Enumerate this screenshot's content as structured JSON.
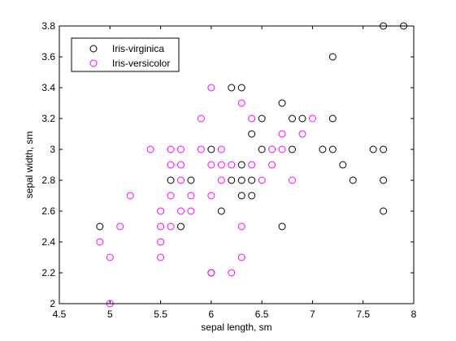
{
  "chart_data": {
    "type": "scatter",
    "title": "",
    "xlabel": "sepal length, sm",
    "ylabel": "sepal width, sm",
    "xlim": [
      4.5,
      8
    ],
    "ylim": [
      2,
      3.8
    ],
    "xticks": [
      "4.5",
      "5",
      "5.5",
      "6",
      "6.5",
      "7",
      "7.5",
      "8"
    ],
    "yticks": [
      "2",
      "2.2",
      "2.4",
      "2.6",
      "2.8",
      "3",
      "3.2",
      "3.4",
      "3.6",
      "3.8"
    ],
    "grid": false,
    "legend_position": "top-left",
    "series": [
      {
        "name": "Iris-virginica",
        "color": "#000000",
        "marker": "open-circle",
        "points": [
          [
            4.9,
            2.5
          ],
          [
            5.6,
            2.8
          ],
          [
            5.7,
            2.5
          ],
          [
            5.8,
            2.8
          ],
          [
            6.0,
            3.0
          ],
          [
            6.0,
            2.2
          ],
          [
            6.1,
            2.6
          ],
          [
            6.2,
            3.4
          ],
          [
            6.2,
            2.8
          ],
          [
            6.3,
            3.4
          ],
          [
            6.3,
            2.9
          ],
          [
            6.3,
            2.8
          ],
          [
            6.3,
            2.7
          ],
          [
            6.4,
            3.1
          ],
          [
            6.4,
            2.8
          ],
          [
            6.4,
            2.7
          ],
          [
            6.5,
            3.2
          ],
          [
            6.5,
            3.0
          ],
          [
            6.7,
            3.3
          ],
          [
            6.7,
            2.5
          ],
          [
            6.8,
            3.2
          ],
          [
            6.8,
            3.0
          ],
          [
            6.9,
            3.2
          ],
          [
            7.1,
            3.0
          ],
          [
            7.2,
            3.6
          ],
          [
            7.2,
            3.2
          ],
          [
            7.2,
            3.0
          ],
          [
            7.3,
            2.9
          ],
          [
            7.4,
            2.8
          ],
          [
            7.6,
            3.0
          ],
          [
            7.7,
            3.8
          ],
          [
            7.7,
            3.0
          ],
          [
            7.7,
            2.8
          ],
          [
            7.7,
            2.6
          ],
          [
            7.9,
            3.8
          ]
        ]
      },
      {
        "name": "Iris-versicolor",
        "color": "#ff00ff",
        "marker": "open-circle",
        "points": [
          [
            4.9,
            2.4
          ],
          [
            5.0,
            2.3
          ],
          [
            5.0,
            2.0
          ],
          [
            5.1,
            2.5
          ],
          [
            5.2,
            2.7
          ],
          [
            5.4,
            3.0
          ],
          [
            5.5,
            2.6
          ],
          [
            5.5,
            2.5
          ],
          [
            5.5,
            2.4
          ],
          [
            5.5,
            2.3
          ],
          [
            5.6,
            3.0
          ],
          [
            5.6,
            2.9
          ],
          [
            5.6,
            2.7
          ],
          [
            5.6,
            2.5
          ],
          [
            5.7,
            3.0
          ],
          [
            5.7,
            2.9
          ],
          [
            5.7,
            2.8
          ],
          [
            5.7,
            2.6
          ],
          [
            5.8,
            2.7
          ],
          [
            5.8,
            2.6
          ],
          [
            5.9,
            3.2
          ],
          [
            5.9,
            3.0
          ],
          [
            6.0,
            3.4
          ],
          [
            6.0,
            2.9
          ],
          [
            6.0,
            2.7
          ],
          [
            6.0,
            2.2
          ],
          [
            6.1,
            3.0
          ],
          [
            6.1,
            2.9
          ],
          [
            6.1,
            2.8
          ],
          [
            6.2,
            2.9
          ],
          [
            6.2,
            2.2
          ],
          [
            6.3,
            3.3
          ],
          [
            6.3,
            2.5
          ],
          [
            6.3,
            2.3
          ],
          [
            6.4,
            3.2
          ],
          [
            6.4,
            2.9
          ],
          [
            6.5,
            2.8
          ],
          [
            6.6,
            3.0
          ],
          [
            6.6,
            2.9
          ],
          [
            6.7,
            3.1
          ],
          [
            6.7,
            3.0
          ],
          [
            6.8,
            2.8
          ],
          [
            6.9,
            3.1
          ],
          [
            7.0,
            3.2
          ]
        ]
      }
    ]
  }
}
